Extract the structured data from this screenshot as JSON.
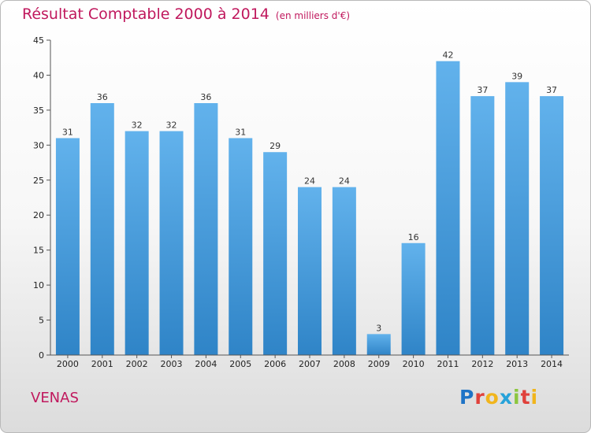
{
  "header": {
    "title": "Résultat Comptable 2000 à 2014",
    "unit": "(en milliers d'€)"
  },
  "footer": {
    "commune": "VENAS",
    "brand": "Proxiti",
    "brand_letters": [
      {
        "ch": "P",
        "color": "#1e73c6"
      },
      {
        "ch": "r",
        "color": "#e0413b"
      },
      {
        "ch": "o",
        "color": "#f1b51c"
      },
      {
        "ch": "x",
        "color": "#27a2d9"
      },
      {
        "ch": "i",
        "color": "#8cc63f"
      },
      {
        "ch": "t",
        "color": "#e0413b"
      },
      {
        "ch": "i",
        "color": "#f1b51c"
      }
    ]
  },
  "colors": {
    "bar_top": "#62b2ec",
    "bar_bottom": "#2f84c7",
    "axis": "#555555",
    "title": "#c0185d"
  },
  "chart_data": {
    "type": "bar",
    "title": "Résultat Comptable 2000 à 2014",
    "subtitle": "(en milliers d'€)",
    "categories": [
      "2000",
      "2001",
      "2002",
      "2003",
      "2004",
      "2005",
      "2006",
      "2007",
      "2008",
      "2009",
      "2010",
      "2011",
      "2012",
      "2013",
      "2014"
    ],
    "values": [
      31,
      36,
      32,
      32,
      36,
      31,
      29,
      24,
      24,
      3,
      16,
      42,
      37,
      39,
      37
    ],
    "ylim": [
      0,
      45
    ],
    "yticks": [
      0,
      5,
      10,
      15,
      20,
      25,
      30,
      35,
      40,
      45
    ],
    "xlabel": "",
    "ylabel": "",
    "grid": false
  }
}
